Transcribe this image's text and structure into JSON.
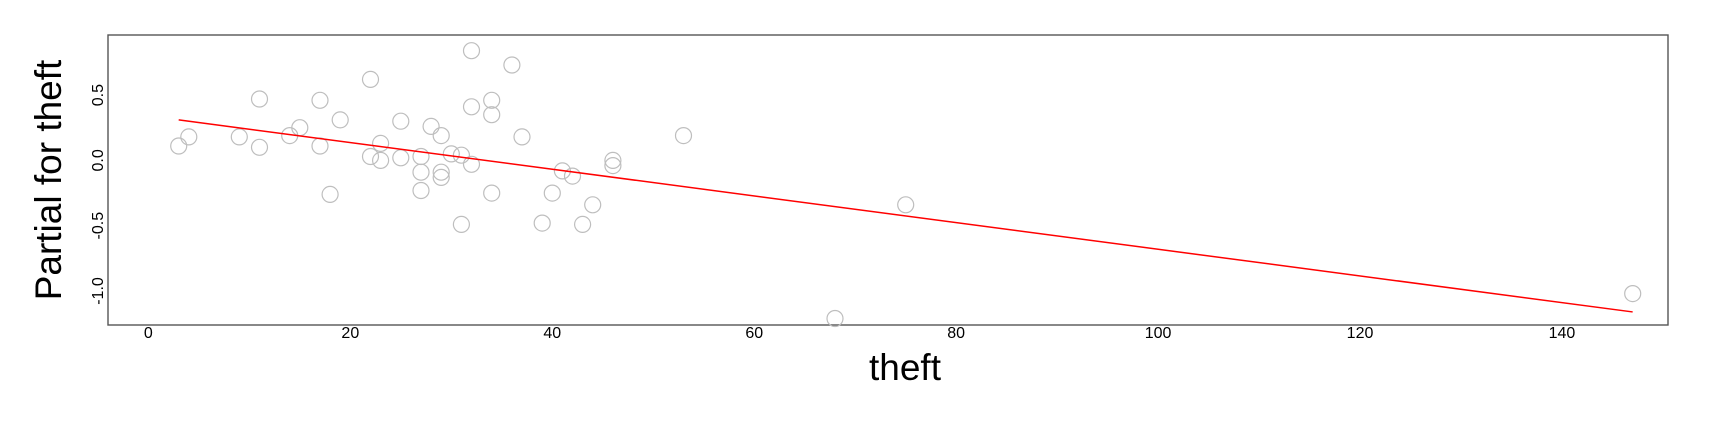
{
  "chart_data": {
    "type": "scatter",
    "title": "",
    "xlabel": "theft",
    "ylabel": "Partial for theft",
    "xlim": [
      -4,
      150.5
    ],
    "ylim": [
      -1.26,
      0.96
    ],
    "x_ticks": [
      0,
      20,
      40,
      60,
      80,
      100,
      120,
      140
    ],
    "y_ticks": [
      -1.0,
      -0.5,
      0.0,
      0.5
    ],
    "x_tick_labels": [
      "0",
      "20",
      "40",
      "60",
      "80",
      "100",
      "120",
      "140"
    ],
    "y_tick_labels": [
      "-1.0",
      "-0.5",
      "0.0",
      "0.5"
    ],
    "grid": false,
    "legend": "none",
    "point_color": "#bebebe",
    "line_color": "#ff0000",
    "fit_line": {
      "x": [
        3,
        147
      ],
      "y": [
        0.31,
        -1.16
      ]
    },
    "points": [
      {
        "x": 3,
        "y": 0.11
      },
      {
        "x": 4,
        "y": 0.18
      },
      {
        "x": 9,
        "y": 0.18
      },
      {
        "x": 11,
        "y": 0.47
      },
      {
        "x": 11,
        "y": 0.1
      },
      {
        "x": 14,
        "y": 0.19
      },
      {
        "x": 15,
        "y": 0.25
      },
      {
        "x": 17,
        "y": 0.46
      },
      {
        "x": 17,
        "y": 0.11
      },
      {
        "x": 18,
        "y": -0.26
      },
      {
        "x": 19,
        "y": 0.31
      },
      {
        "x": 22,
        "y": 0.62
      },
      {
        "x": 22,
        "y": 0.03
      },
      {
        "x": 23,
        "y": 0.13
      },
      {
        "x": 23,
        "y": 0.0
      },
      {
        "x": 25,
        "y": 0.3
      },
      {
        "x": 25,
        "y": 0.02
      },
      {
        "x": 27,
        "y": -0.09
      },
      {
        "x": 27,
        "y": 0.03
      },
      {
        "x": 27,
        "y": -0.23
      },
      {
        "x": 28,
        "y": 0.26
      },
      {
        "x": 29,
        "y": 0.19
      },
      {
        "x": 29,
        "y": -0.09
      },
      {
        "x": 29,
        "y": -0.13
      },
      {
        "x": 30,
        "y": 0.05
      },
      {
        "x": 31,
        "y": 0.04
      },
      {
        "x": 31,
        "y": -0.49
      },
      {
        "x": 32,
        "y": 0.84
      },
      {
        "x": 32,
        "y": 0.41
      },
      {
        "x": 32,
        "y": -0.03
      },
      {
        "x": 34,
        "y": 0.46
      },
      {
        "x": 34,
        "y": 0.35
      },
      {
        "x": 34,
        "y": -0.25
      },
      {
        "x": 36,
        "y": 0.73
      },
      {
        "x": 37,
        "y": 0.18
      },
      {
        "x": 39,
        "y": -0.48
      },
      {
        "x": 40,
        "y": -0.25
      },
      {
        "x": 41,
        "y": -0.08
      },
      {
        "x": 42,
        "y": -0.12
      },
      {
        "x": 43,
        "y": -0.49
      },
      {
        "x": 44,
        "y": -0.34
      },
      {
        "x": 46,
        "y": 0.0
      },
      {
        "x": 46,
        "y": -0.04
      },
      {
        "x": 53,
        "y": 0.19
      },
      {
        "x": 68,
        "y": -1.21
      },
      {
        "x": 75,
        "y": -0.34
      },
      {
        "x": 147,
        "y": -1.02
      }
    ]
  }
}
